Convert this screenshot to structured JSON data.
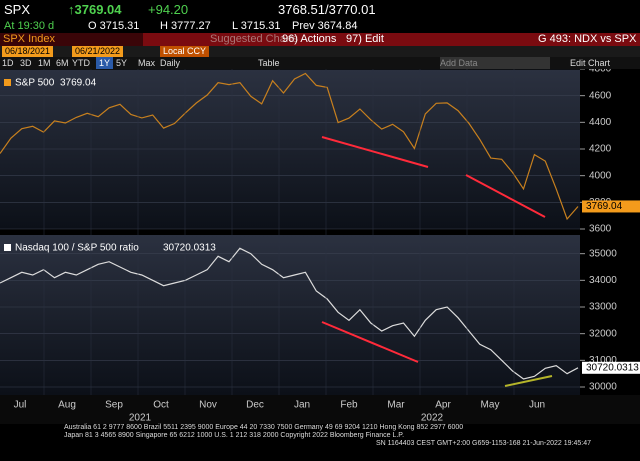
{
  "header": {
    "ticker": "SPX",
    "last": "↑3769.04",
    "change": "+94.20",
    "bid_ask": "3768.51/3770.01",
    "time": "At 19:30 d",
    "open": "O 3715.31",
    "high": "H 3777.27",
    "low": "L 3715.31",
    "prev": "Prev 3674.84"
  },
  "toolbar": {
    "security": "SPX Index",
    "suggested": "Suggested Charts",
    "actions": "96) Actions",
    "edit": "97) Edit",
    "function": "G 493: NDX vs SPX",
    "start": "06/18/2021",
    "end": "06/21/2022",
    "currency": "Local CCY",
    "periods": [
      "1D",
      "3D",
      "1M",
      "6M",
      "YTD",
      "1Y",
      "5Y",
      "Max",
      "Daily",
      "Table",
      "Add Data",
      "Edit Chart"
    ]
  },
  "chart_data": [
    {
      "type": "line",
      "series": [
        {
          "name": "S&P 500",
          "color": "#c8801e",
          "values": [
            4166,
            4281,
            4352,
            4370,
            4327,
            4411,
            4395,
            4437,
            4468,
            4442,
            4509,
            4535,
            4459,
            4433,
            4455,
            4357,
            4391,
            4471,
            4545,
            4605,
            4697,
            4683,
            4698,
            4595,
            4538,
            4712,
            4620,
            4725,
            4766,
            4677,
            4662,
            4398,
            4432,
            4500,
            4419,
            4349,
            4385,
            4329,
            4204,
            4463,
            4543,
            4546,
            4488,
            4393,
            4272,
            4132,
            4123,
            4024,
            3901,
            4158,
            4109,
            3901,
            3675,
            3769.04
          ]
        }
      ],
      "ylim": [
        3600,
        4800
      ],
      "yticks": [
        3600,
        3800,
        4000,
        4200,
        4400,
        4600,
        4800
      ],
      "grid": true
    },
    {
      "type": "line",
      "series": [
        {
          "name": "Nasdaq 100 / S&P 500 ratio",
          "color": "#dcdcdc",
          "values": [
            33900,
            34100,
            34300,
            34200,
            34400,
            34100,
            34300,
            34200,
            34400,
            34600,
            34700,
            34500,
            34300,
            34200,
            34000,
            33800,
            33900,
            34000,
            34200,
            34400,
            34900,
            34700,
            35200,
            35000,
            34600,
            34400,
            34100,
            34200,
            34300,
            33600,
            33300,
            32800,
            32500,
            32900,
            32400,
            32100,
            32300,
            32400,
            31900,
            32500,
            32900,
            33000,
            32600,
            32100,
            31600,
            31400,
            31000,
            30600,
            30300,
            30400,
            30700,
            30800,
            30500,
            30720.0313
          ]
        }
      ],
      "ylim": [
        29700,
        35700
      ],
      "yticks": [
        30000,
        31000,
        32000,
        33000,
        34000,
        35000
      ],
      "grid": true,
      "xticks": [
        "Jul",
        "Aug",
        "Sep",
        "Oct",
        "Nov",
        "Dec",
        "Jan",
        "Feb",
        "Mar",
        "Apr",
        "May",
        "Jun"
      ],
      "xtick_groups": [
        "2021",
        "2022"
      ]
    }
  ],
  "footer": [
    "Australia 61 2 9777 8600 Brazil 5511 2395 9000 Europe 44 20 7330 7500 Germany 49 69 9204 1210 Hong Kong 852 2977 6000",
    "Japan 81 3 4565 8900      Singapore 65 6212 1000      U.S. 1 212 318 2000      Copyright 2022 Bloomberg Finance L.P.",
    "SN 1164403 CEST GMT+2:00 G659-1153-168 21-Jun-2022 19:45:47"
  ]
}
